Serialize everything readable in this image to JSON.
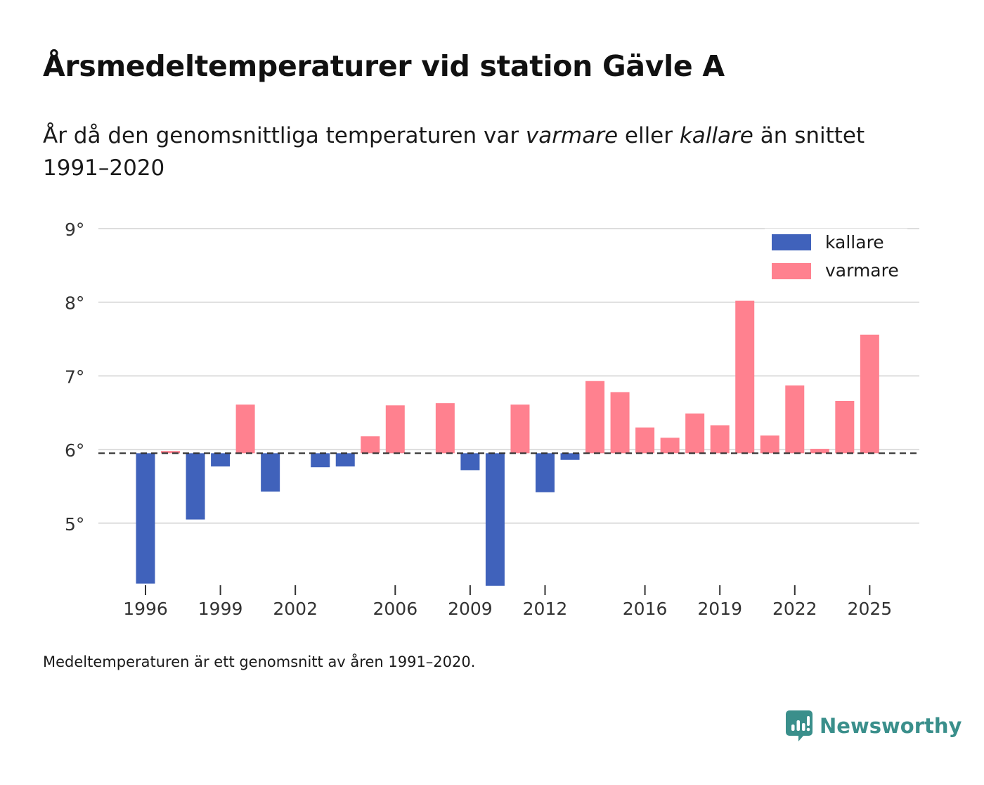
{
  "title": "Årsmedeltemperaturer vid station Gävle A",
  "subtitle": {
    "part1": "År då den genomsnittliga temperaturen var ",
    "warm_word": "varmare",
    "part2": " eller ",
    "cold_word": "kallare",
    "part3": " än snittet 1991–2020"
  },
  "note": "Medeltemperaturen är ett genomsnitt av åren 1991–2020.",
  "brand": {
    "name": "Newsworthy",
    "icon": "newsworthy-logo-icon"
  },
  "colors": {
    "cold": "#4062bb",
    "warm": "#ff818f",
    "grid": "#dddddd",
    "baseline": "#333333"
  },
  "chart_data": {
    "type": "bar",
    "title": "Årsmedeltemperaturer vid station Gävle A",
    "baseline": 5.95,
    "ylim": [
      4.15,
      9.0
    ],
    "yticks": [
      5,
      6,
      7,
      8,
      9
    ],
    "ytick_suffix": "°",
    "xticks": [
      1996,
      1999,
      2002,
      2006,
      2009,
      2012,
      2016,
      2019,
      2022,
      2025
    ],
    "legend": {
      "position": "top-right",
      "cold_label": "kallare",
      "warm_label": "varmare"
    },
    "years": [
      1996,
      1997,
      1998,
      1999,
      2000,
      2001,
      2002,
      2003,
      2004,
      2005,
      2006,
      2007,
      2008,
      2009,
      2010,
      2011,
      2012,
      2013,
      2014,
      2015,
      2016,
      2017,
      2018,
      2019,
      2020,
      2021,
      2022,
      2023,
      2024,
      2025
    ],
    "values": [
      4.18,
      5.98,
      5.05,
      5.77,
      6.61,
      5.43,
      null,
      5.76,
      5.77,
      6.18,
      6.6,
      null,
      6.63,
      5.72,
      4.15,
      6.61,
      5.42,
      5.86,
      6.93,
      6.78,
      6.3,
      6.16,
      6.49,
      6.33,
      8.02,
      6.19,
      6.87,
      6.01,
      6.66,
      7.56
    ]
  }
}
